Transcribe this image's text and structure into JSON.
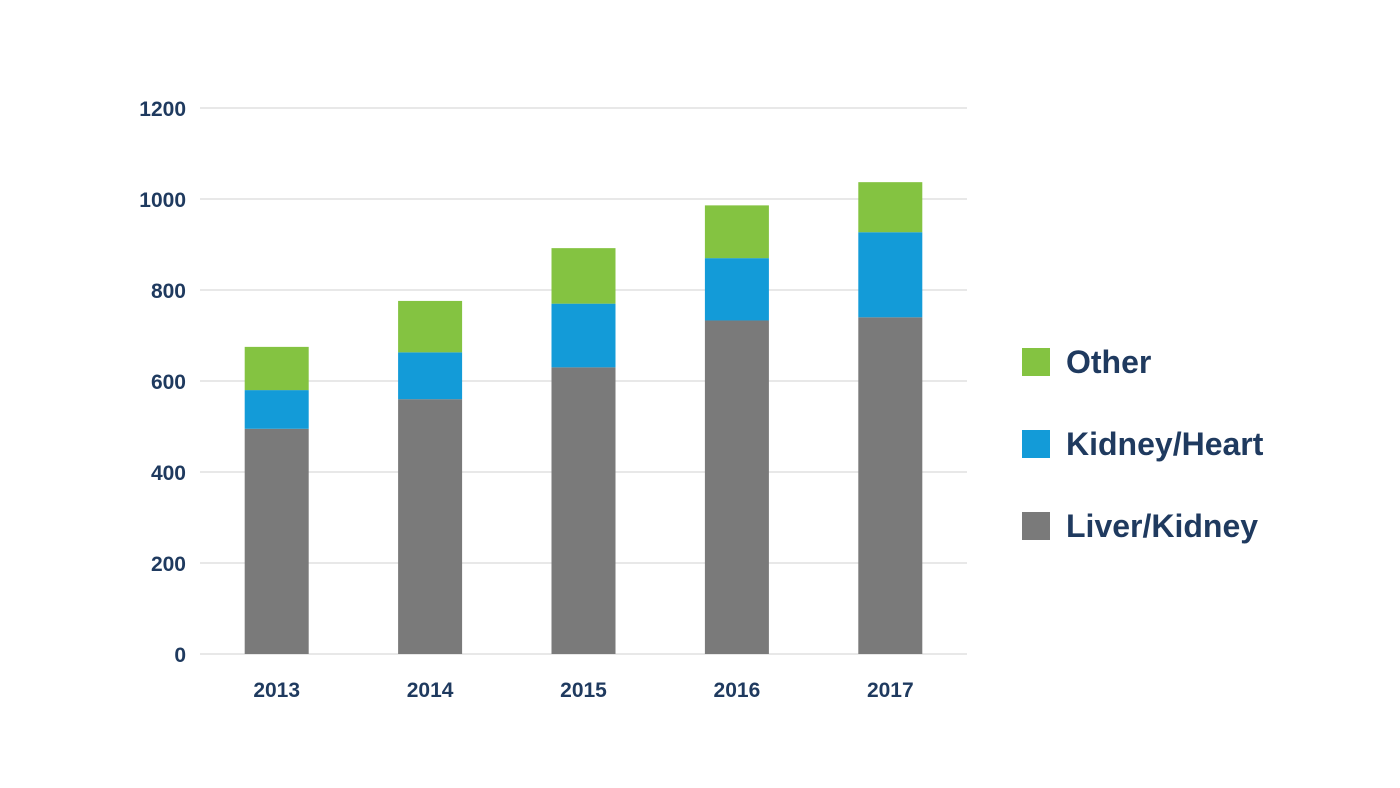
{
  "chart_data": {
    "type": "bar",
    "stacked": true,
    "title": "",
    "xlabel": "",
    "ylabel": "",
    "categories": [
      "2013",
      "2014",
      "2015",
      "2016",
      "2017"
    ],
    "series": [
      {
        "name": "Liver/Kidney",
        "values": [
          495,
          560,
          630,
          733,
          740
        ],
        "color": "#7a7a7a"
      },
      {
        "name": "Kidney/Heart",
        "values": [
          85,
          103,
          140,
          137,
          187
        ],
        "color": "#139bd8"
      },
      {
        "name": "Other",
        "values": [
          95,
          113,
          122,
          116,
          110
        ],
        "color": "#84c341"
      }
    ],
    "ylim": [
      0,
      1200
    ],
    "yticks": [
      "0",
      "200",
      "400",
      "600",
      "800",
      "1000",
      "1200"
    ],
    "grid": true,
    "legend_position": "right",
    "legend_order": [
      "Other",
      "Kidney/Heart",
      "Liver/Kidney"
    ]
  }
}
